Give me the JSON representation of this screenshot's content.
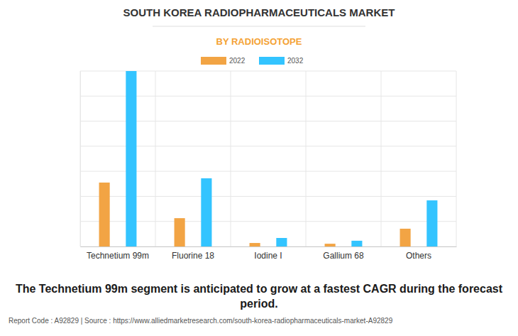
{
  "chart_data": {
    "type": "bar",
    "title": "SOUTH KOREA RADIOPHARMACEUTICALS MARKET",
    "subtitle": "BY RADIOISOTOPE",
    "annotation": "The Technetium 99m segment is anticipated to grow at a fastest CAGR during the forecast period.",
    "footer": "Report Code : A92829  |  Source : https://www.alliedmarketresearch.com/south-korea-radiopharmaceuticals-market-A92829",
    "categories": [
      "Technetium 99m",
      "Fluorine 18",
      "Iodine I",
      "Gallium 68",
      "Others"
    ],
    "series": [
      {
        "name": "2022",
        "color": "#f2a444",
        "values": [
          2.55,
          1.13,
          0.14,
          0.11,
          0.71
        ]
      },
      {
        "name": "2032",
        "color": "#33c4ff",
        "values": [
          7,
          2.72,
          0.34,
          0.23,
          1.84
        ]
      }
    ],
    "ylim": [
      0,
      7
    ],
    "yticks": [
      0,
      1,
      2,
      3,
      4,
      5,
      6,
      7
    ],
    "grid": true,
    "legend": "top",
    "tick_labels": "x"
  }
}
